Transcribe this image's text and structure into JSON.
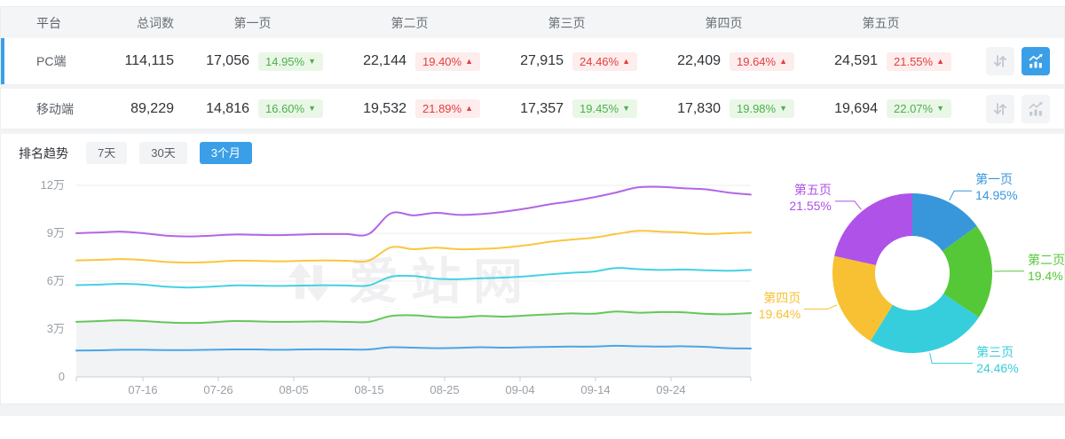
{
  "colors": {
    "brand_blue": "#3B9FE8",
    "up_red": "#E33E3E",
    "down_green": "#4CB04F",
    "header_bg": "#F3F5F7",
    "fill_gray": "#F2F3F4"
  },
  "table": {
    "columns": [
      "平台",
      "总词数",
      "第一页",
      "第二页",
      "第三页",
      "第四页",
      "第五页"
    ],
    "rows": [
      {
        "platform": "PC端",
        "total": "114,115",
        "pages": [
          {
            "value": "17,056",
            "change": "14.95%",
            "dir": "down"
          },
          {
            "value": "22,144",
            "change": "19.40%",
            "dir": "up"
          },
          {
            "value": "27,915",
            "change": "24.46%",
            "dir": "up"
          },
          {
            "value": "22,409",
            "change": "19.64%",
            "dir": "up"
          },
          {
            "value": "24,591",
            "change": "21.55%",
            "dir": "up"
          }
        ],
        "actions": {
          "sort": false,
          "chart": true
        }
      },
      {
        "platform": "移动端",
        "total": "89,229",
        "pages": [
          {
            "value": "14,816",
            "change": "16.60%",
            "dir": "down"
          },
          {
            "value": "19,532",
            "change": "21.89%",
            "dir": "up"
          },
          {
            "value": "17,357",
            "change": "19.45%",
            "dir": "down"
          },
          {
            "value": "17,830",
            "change": "19.98%",
            "dir": "down"
          },
          {
            "value": "19,694",
            "change": "22.07%",
            "dir": "down"
          }
        ],
        "actions": {
          "sort": false,
          "chart": false
        }
      }
    ]
  },
  "trend": {
    "label": "排名趋势",
    "tabs": [
      {
        "label": "7天",
        "active": false
      },
      {
        "label": "30天",
        "active": false
      },
      {
        "label": "3个月",
        "active": true
      }
    ]
  },
  "watermark": {
    "text": "爱站网",
    "icon": "aizhan-logo"
  },
  "chart_data": [
    {
      "type": "line",
      "title": "排名趋势 3个月",
      "x_ticks": [
        "07-16",
        "07-26",
        "08-05",
        "08-15",
        "08-25",
        "09-04",
        "09-14",
        "09-24"
      ],
      "y_ticks": [
        "0",
        "3万",
        "6万",
        "9万",
        "12万"
      ],
      "ylim_wan": [
        0,
        12
      ],
      "values_unit": "万",
      "grid": true,
      "legend": "none",
      "series": [
        {
          "name": "series-purple",
          "color": "#B266E6",
          "area": false,
          "values_wan": [
            9.0,
            9.05,
            9.1,
            9.0,
            8.85,
            8.8,
            8.85,
            8.92,
            8.9,
            8.88,
            8.92,
            8.95,
            8.95,
            8.95,
            10.25,
            10.12,
            10.28,
            10.15,
            10.2,
            10.35,
            10.55,
            10.8,
            11.0,
            11.25,
            11.55,
            11.88,
            11.9,
            11.82,
            11.75,
            11.55,
            11.42
          ]
        },
        {
          "name": "series-yellow",
          "color": "#F9C63E",
          "area": false,
          "values_wan": [
            7.3,
            7.33,
            7.38,
            7.32,
            7.2,
            7.16,
            7.2,
            7.28,
            7.27,
            7.24,
            7.27,
            7.3,
            7.28,
            7.28,
            8.12,
            8.0,
            8.1,
            8.0,
            8.02,
            8.1,
            8.25,
            8.45,
            8.6,
            8.72,
            8.95,
            9.15,
            9.1,
            9.05,
            8.95,
            9.0,
            9.05
          ]
        },
        {
          "name": "series-cyan",
          "color": "#43D2E2",
          "area": false,
          "values_wan": [
            5.75,
            5.78,
            5.83,
            5.78,
            5.65,
            5.6,
            5.65,
            5.73,
            5.72,
            5.7,
            5.72,
            5.74,
            5.73,
            5.73,
            6.28,
            6.32,
            6.15,
            6.12,
            6.18,
            6.22,
            6.3,
            6.42,
            6.52,
            6.6,
            6.82,
            6.75,
            6.7,
            6.73,
            6.68,
            6.65,
            6.7
          ]
        },
        {
          "name": "series-green",
          "color": "#64C75B",
          "area": true,
          "values_wan": [
            3.45,
            3.5,
            3.55,
            3.5,
            3.42,
            3.38,
            3.42,
            3.5,
            3.48,
            3.45,
            3.46,
            3.48,
            3.45,
            3.45,
            3.82,
            3.86,
            3.76,
            3.73,
            3.82,
            3.78,
            3.85,
            3.92,
            3.98,
            3.96,
            4.1,
            4.02,
            4.06,
            4.05,
            3.95,
            3.93,
            4.0
          ]
        },
        {
          "name": "series-blue",
          "color": "#4AA5E8",
          "area": false,
          "values_wan": [
            1.65,
            1.67,
            1.7,
            1.7,
            1.68,
            1.68,
            1.7,
            1.72,
            1.72,
            1.7,
            1.72,
            1.73,
            1.72,
            1.72,
            1.86,
            1.83,
            1.8,
            1.82,
            1.86,
            1.83,
            1.86,
            1.88,
            1.9,
            1.9,
            1.95,
            1.92,
            1.9,
            1.92,
            1.88,
            1.8,
            1.78
          ]
        }
      ]
    },
    {
      "type": "pie",
      "title": "",
      "donut": true,
      "segments": [
        {
          "label": "第一页",
          "value": 14.95,
          "display": "14.95%",
          "color": "#3896DB"
        },
        {
          "label": "第二页",
          "value": 19.4,
          "display": "19.4%",
          "color": "#55C837"
        },
        {
          "label": "第三页",
          "value": 24.46,
          "display": "24.46%",
          "color": "#36CEDC"
        },
        {
          "label": "第四页",
          "value": 19.64,
          "display": "19.64%",
          "color": "#F7C133"
        },
        {
          "label": "第五页",
          "value": 21.55,
          "display": "21.55%",
          "color": "#AF52E8"
        }
      ]
    }
  ]
}
